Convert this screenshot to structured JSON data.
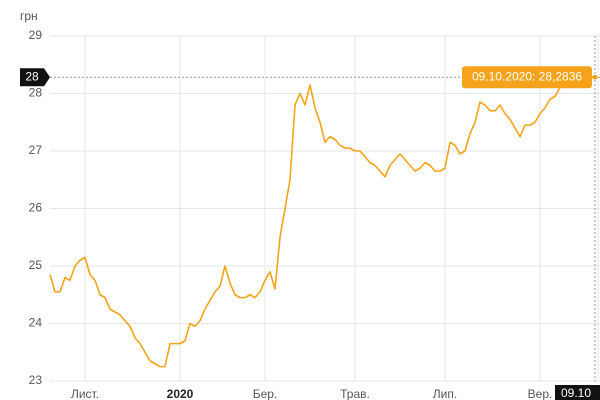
{
  "chart_data": {
    "type": "line",
    "ylabel": "грн",
    "categories": [
      null,
      null,
      null,
      null,
      null,
      null,
      null,
      "Лист.",
      null,
      null,
      null,
      null,
      null,
      null,
      null,
      null,
      null,
      null,
      null,
      null,
      null,
      null,
      null,
      null,
      null,
      null,
      "2020",
      null,
      null,
      null,
      null,
      null,
      null,
      null,
      null,
      null,
      null,
      null,
      null,
      null,
      null,
      null,
      null,
      "Бер.",
      null,
      null,
      null,
      null,
      null,
      null,
      null,
      null,
      null,
      null,
      null,
      null,
      null,
      null,
      null,
      null,
      null,
      "Трав.",
      null,
      null,
      null,
      null,
      null,
      null,
      null,
      null,
      null,
      null,
      null,
      null,
      null,
      null,
      null,
      null,
      null,
      "Лип.",
      null,
      null,
      null,
      null,
      null,
      null,
      null,
      null,
      null,
      null,
      null,
      null,
      null,
      null,
      null,
      null,
      null,
      null,
      "Вер.",
      null,
      null,
      null,
      null,
      null,
      null,
      null,
      null,
      null,
      null,
      null
    ],
    "values": [
      24.85,
      24.55,
      24.55,
      24.8,
      24.75,
      25.0,
      25.1,
      25.15,
      24.85,
      24.75,
      24.5,
      24.45,
      24.25,
      24.2,
      24.15,
      24.05,
      23.95,
      23.75,
      23.65,
      23.5,
      23.35,
      23.3,
      23.25,
      23.25,
      23.65,
      23.65,
      23.65,
      23.7,
      24.0,
      23.95,
      24.05,
      24.25,
      24.4,
      24.55,
      24.65,
      25.0,
      24.7,
      24.5,
      24.45,
      24.45,
      24.5,
      24.45,
      24.55,
      24.75,
      24.9,
      24.6,
      25.5,
      26.0,
      26.5,
      27.8,
      28.0,
      27.8,
      28.15,
      27.75,
      27.5,
      27.15,
      27.25,
      27.2,
      27.1,
      27.05,
      27.05,
      27.0,
      27.0,
      26.9,
      26.8,
      26.75,
      26.65,
      26.55,
      26.75,
      26.85,
      26.95,
      26.85,
      26.75,
      26.65,
      26.7,
      26.8,
      26.75,
      26.65,
      26.65,
      26.7,
      27.15,
      27.1,
      26.95,
      27.0,
      27.3,
      27.5,
      27.85,
      27.8,
      27.7,
      27.7,
      27.8,
      27.65,
      27.55,
      27.4,
      27.25,
      27.45,
      27.45,
      27.5,
      27.65,
      27.75,
      27.9,
      27.95,
      28.1,
      28.25,
      28.3,
      28.3,
      28.28,
      28.3,
      28.29,
      28.2836
    ],
    "color": "#f5a31a",
    "ylim": [
      23,
      29
    ],
    "yticks": [
      23,
      24,
      25,
      26,
      27,
      28,
      29
    ],
    "grid": true,
    "crosshair_y_label": "28",
    "crosshair_x_label": "09.10",
    "tooltip": "09.10.2020: 28,2836"
  }
}
